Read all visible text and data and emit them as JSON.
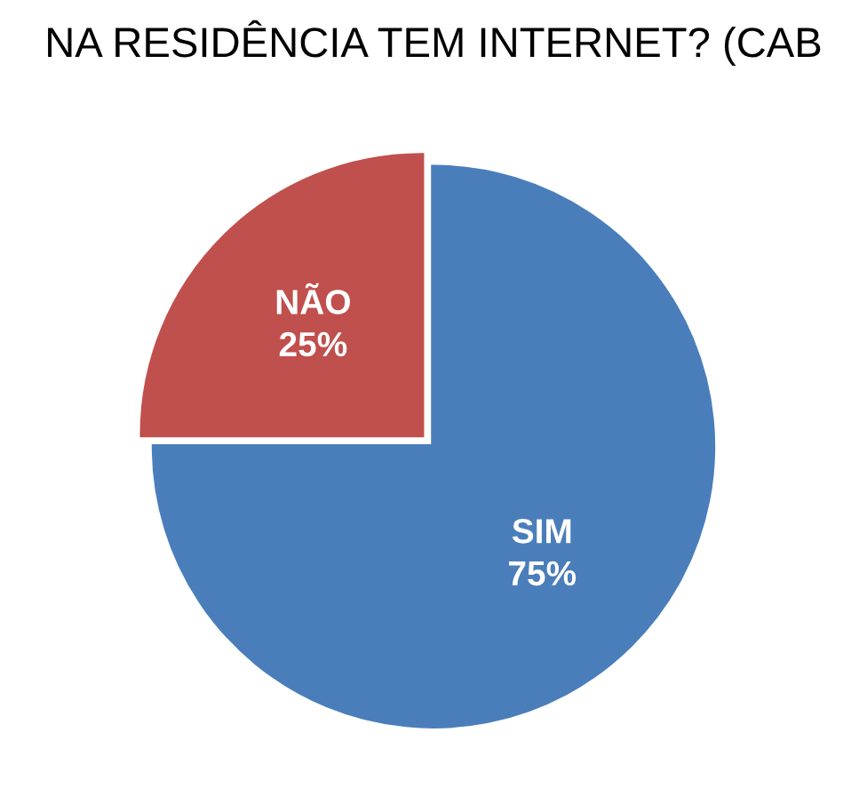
{
  "chart_data": {
    "type": "pie",
    "title": "NA RESIDÊNCIA TEM INTERNET? (CAB",
    "categories": [
      "NÃO",
      "SIM"
    ],
    "values": [
      25,
      75
    ],
    "colors": [
      "#c0504d",
      "#4a7ebb"
    ],
    "value_labels": [
      "25%",
      "75%"
    ]
  }
}
